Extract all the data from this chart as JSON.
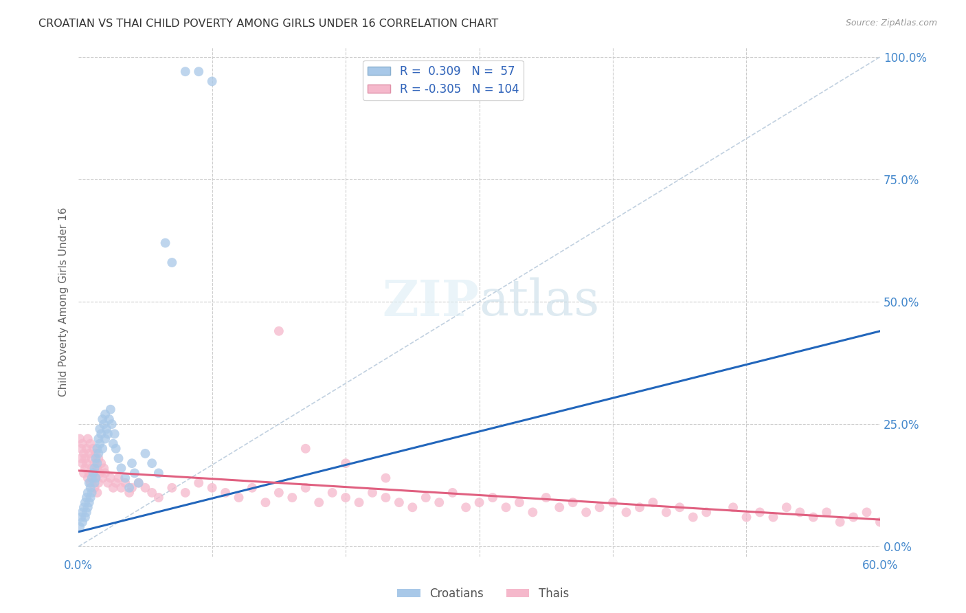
{
  "title": "CROATIAN VS THAI CHILD POVERTY AMONG GIRLS UNDER 16 CORRELATION CHART",
  "source": "Source: ZipAtlas.com",
  "ylabel": "Child Poverty Among Girls Under 16",
  "xlim": [
    0.0,
    0.6
  ],
  "ylim": [
    -0.02,
    1.02
  ],
  "yticks_right": [
    0.0,
    0.25,
    0.5,
    0.75,
    1.0
  ],
  "ytick_labels_right": [
    "0.0%",
    "25.0%",
    "50.0%",
    "75.0%",
    "100.0%"
  ],
  "blue_scatter_color": "#a8c8e8",
  "pink_scatter_color": "#f5b8cb",
  "blue_line_color": "#2266bb",
  "pink_line_color": "#e06080",
  "diag_line_color": "#bbccdd",
  "title_color": "#333333",
  "axis_label_color": "#666666",
  "tick_label_color": "#4488cc",
  "grid_color": "#cccccc",
  "background_color": "#ffffff",
  "scatter_size": 100,
  "scatter_alpha": 0.75,
  "croatian_x": [
    0.001,
    0.002,
    0.003,
    0.003,
    0.004,
    0.005,
    0.005,
    0.006,
    0.006,
    0.007,
    0.007,
    0.008,
    0.008,
    0.009,
    0.009,
    0.01,
    0.01,
    0.011,
    0.012,
    0.012,
    0.013,
    0.013,
    0.014,
    0.014,
    0.015,
    0.015,
    0.016,
    0.016,
    0.017,
    0.018,
    0.018,
    0.019,
    0.02,
    0.02,
    0.021,
    0.022,
    0.023,
    0.024,
    0.025,
    0.026,
    0.027,
    0.028,
    0.03,
    0.032,
    0.035,
    0.038,
    0.04,
    0.042,
    0.045,
    0.05,
    0.055,
    0.06,
    0.065,
    0.07,
    0.08,
    0.09,
    0.1
  ],
  "croatian_y": [
    0.04,
    0.06,
    0.05,
    0.07,
    0.08,
    0.06,
    0.09,
    0.07,
    0.1,
    0.08,
    0.11,
    0.09,
    0.13,
    0.1,
    0.12,
    0.14,
    0.11,
    0.15,
    0.13,
    0.16,
    0.18,
    0.14,
    0.2,
    0.17,
    0.22,
    0.19,
    0.24,
    0.21,
    0.23,
    0.2,
    0.26,
    0.25,
    0.27,
    0.22,
    0.24,
    0.23,
    0.26,
    0.28,
    0.25,
    0.21,
    0.23,
    0.2,
    0.18,
    0.16,
    0.14,
    0.12,
    0.17,
    0.15,
    0.13,
    0.19,
    0.17,
    0.15,
    0.62,
    0.58,
    0.97,
    0.97,
    0.95
  ],
  "thai_x": [
    0.001,
    0.002,
    0.002,
    0.003,
    0.003,
    0.004,
    0.004,
    0.005,
    0.005,
    0.006,
    0.006,
    0.007,
    0.007,
    0.008,
    0.008,
    0.009,
    0.009,
    0.01,
    0.01,
    0.011,
    0.011,
    0.012,
    0.012,
    0.013,
    0.013,
    0.014,
    0.014,
    0.015,
    0.015,
    0.016,
    0.017,
    0.018,
    0.019,
    0.02,
    0.022,
    0.024,
    0.026,
    0.028,
    0.03,
    0.032,
    0.035,
    0.038,
    0.04,
    0.045,
    0.05,
    0.055,
    0.06,
    0.07,
    0.08,
    0.09,
    0.1,
    0.11,
    0.12,
    0.13,
    0.14,
    0.15,
    0.16,
    0.17,
    0.18,
    0.19,
    0.2,
    0.21,
    0.22,
    0.23,
    0.24,
    0.25,
    0.26,
    0.27,
    0.28,
    0.29,
    0.3,
    0.31,
    0.32,
    0.33,
    0.34,
    0.35,
    0.36,
    0.37,
    0.38,
    0.39,
    0.4,
    0.41,
    0.42,
    0.43,
    0.44,
    0.45,
    0.46,
    0.47,
    0.49,
    0.5,
    0.51,
    0.52,
    0.53,
    0.54,
    0.55,
    0.56,
    0.57,
    0.58,
    0.59,
    0.6,
    0.15,
    0.17,
    0.2,
    0.23
  ],
  "thai_y": [
    0.22,
    0.2,
    0.18,
    0.21,
    0.17,
    0.19,
    0.15,
    0.18,
    0.16,
    0.2,
    0.17,
    0.22,
    0.14,
    0.19,
    0.15,
    0.21,
    0.13,
    0.18,
    0.16,
    0.2,
    0.14,
    0.17,
    0.12,
    0.19,
    0.15,
    0.16,
    0.11,
    0.18,
    0.13,
    0.15,
    0.17,
    0.14,
    0.16,
    0.15,
    0.13,
    0.14,
    0.12,
    0.13,
    0.14,
    0.12,
    0.13,
    0.11,
    0.12,
    0.13,
    0.12,
    0.11,
    0.1,
    0.12,
    0.11,
    0.13,
    0.12,
    0.11,
    0.1,
    0.12,
    0.09,
    0.11,
    0.1,
    0.12,
    0.09,
    0.11,
    0.1,
    0.09,
    0.11,
    0.1,
    0.09,
    0.08,
    0.1,
    0.09,
    0.11,
    0.08,
    0.09,
    0.1,
    0.08,
    0.09,
    0.07,
    0.1,
    0.08,
    0.09,
    0.07,
    0.08,
    0.09,
    0.07,
    0.08,
    0.09,
    0.07,
    0.08,
    0.06,
    0.07,
    0.08,
    0.06,
    0.07,
    0.06,
    0.08,
    0.07,
    0.06,
    0.07,
    0.05,
    0.06,
    0.07,
    0.05,
    0.44,
    0.2,
    0.17,
    0.14
  ],
  "blue_regression_x0": 0.0,
  "blue_regression_x1": 0.6,
  "blue_regression_y0": 0.03,
  "blue_regression_y1": 0.44,
  "pink_regression_x0": 0.0,
  "pink_regression_x1": 0.6,
  "pink_regression_y0": 0.155,
  "pink_regression_y1": 0.055
}
